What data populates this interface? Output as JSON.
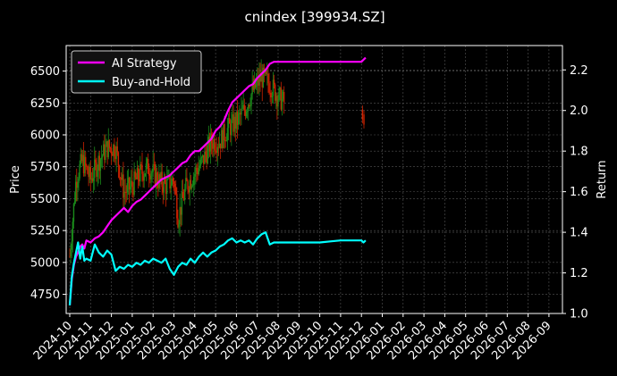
{
  "chart_data": {
    "type": "line",
    "title": "cnindex [399934.SZ]",
    "ylabel_left": "Price",
    "ylabel_right": "Return",
    "ylim_left": [
      4600,
      6700
    ],
    "ylim_right": [
      1.0,
      2.32
    ],
    "yticks_left": [
      "4750",
      "5000",
      "5250",
      "5500",
      "5750",
      "6000",
      "6250",
      "6500"
    ],
    "yticks_right": [
      "1.0",
      "1.2",
      "1.4",
      "1.6",
      "1.8",
      "2.0",
      "2.2"
    ],
    "xticks": [
      "2024-10",
      "2024-11",
      "2024-12",
      "2025-01",
      "2025-02",
      "2025-03",
      "2025-04",
      "2025-05",
      "2025-06",
      "2025-07",
      "2025-08",
      "2025-09",
      "2025-10",
      "2025-11",
      "2025-12",
      "2026-01",
      "2026-02",
      "2026-03",
      "2026-04",
      "2026-05",
      "2026-06",
      "2026-07",
      "2026-08",
      "2026-09"
    ],
    "grid": true,
    "legend_position": "top-left",
    "colors": {
      "ai": "#ff00ff",
      "bh": "#00ffff",
      "up": "#1a8a1a",
      "down": "#cc2200",
      "grid": "#555555"
    },
    "series": [
      {
        "name": "AI Strategy",
        "x": [
          0,
          0.1,
          0.2,
          0.3,
          0.4,
          0.5,
          0.6,
          0.7,
          0.8,
          1.0,
          1.2,
          1.4,
          1.6,
          1.8,
          2.0,
          2.2,
          2.4,
          2.6,
          2.8,
          3.0,
          3.2,
          3.4,
          3.6,
          3.8,
          4.0,
          4.2,
          4.4,
          4.6,
          4.8,
          5.0,
          5.2,
          5.4,
          5.6,
          5.8,
          6.0,
          6.2,
          6.4,
          6.6,
          6.8,
          7.0,
          7.2,
          7.4,
          7.6,
          7.8,
          8.0,
          8.2,
          8.4,
          8.6,
          8.8,
          9.0,
          9.2,
          9.4,
          9.6,
          9.8,
          10.0,
          10.2,
          10.4,
          10.6,
          10.8,
          11.0,
          11.2,
          11.4,
          11.6,
          11.8,
          12.0,
          12.5,
          13.0,
          13.5,
          14.0,
          14.1,
          14.2
        ],
        "y": [
          1.04,
          1.17,
          1.24,
          1.28,
          1.3,
          1.33,
          1.34,
          1.32,
          1.36,
          1.35,
          1.37,
          1.38,
          1.4,
          1.43,
          1.46,
          1.48,
          1.5,
          1.52,
          1.5,
          1.53,
          1.55,
          1.56,
          1.58,
          1.6,
          1.62,
          1.64,
          1.66,
          1.67,
          1.68,
          1.7,
          1.72,
          1.74,
          1.75,
          1.78,
          1.8,
          1.8,
          1.82,
          1.84,
          1.86,
          1.9,
          1.92,
          1.95,
          2.0,
          2.04,
          2.06,
          2.08,
          2.1,
          2.12,
          2.13,
          2.16,
          2.18,
          2.2,
          2.23,
          2.24,
          2.24,
          2.24,
          2.24,
          2.24,
          2.24,
          2.24,
          2.24,
          2.24,
          2.24,
          2.24,
          2.24,
          2.24,
          2.24,
          2.24,
          2.24,
          2.25,
          2.26
        ]
      },
      {
        "name": "Buy-and-Hold",
        "x": [
          0,
          0.1,
          0.2,
          0.3,
          0.4,
          0.5,
          0.6,
          0.7,
          0.8,
          1.0,
          1.2,
          1.4,
          1.6,
          1.8,
          2.0,
          2.2,
          2.4,
          2.6,
          2.8,
          3.0,
          3.2,
          3.4,
          3.6,
          3.8,
          4.0,
          4.2,
          4.4,
          4.6,
          4.8,
          5.0,
          5.2,
          5.4,
          5.6,
          5.8,
          6.0,
          6.2,
          6.4,
          6.6,
          6.8,
          7.0,
          7.2,
          7.4,
          7.6,
          7.8,
          8.0,
          8.2,
          8.4,
          8.6,
          8.8,
          9.0,
          9.2,
          9.4,
          9.6,
          9.8,
          10.0,
          10.5,
          11.0,
          11.5,
          12.0,
          12.5,
          13.0,
          13.5,
          14.0,
          14.1,
          14.2
        ],
        "y": [
          1.04,
          1.18,
          1.25,
          1.3,
          1.35,
          1.27,
          1.33,
          1.26,
          1.27,
          1.26,
          1.34,
          1.3,
          1.28,
          1.31,
          1.29,
          1.21,
          1.23,
          1.22,
          1.24,
          1.23,
          1.25,
          1.24,
          1.26,
          1.25,
          1.27,
          1.26,
          1.25,
          1.27,
          1.22,
          1.19,
          1.23,
          1.25,
          1.24,
          1.27,
          1.25,
          1.28,
          1.3,
          1.28,
          1.3,
          1.31,
          1.33,
          1.34,
          1.36,
          1.37,
          1.35,
          1.36,
          1.35,
          1.36,
          1.34,
          1.37,
          1.39,
          1.4,
          1.34,
          1.35,
          1.35,
          1.35,
          1.35,
          1.35,
          1.35,
          1.355,
          1.36,
          1.36,
          1.36,
          1.35,
          1.36
        ]
      }
    ]
  }
}
